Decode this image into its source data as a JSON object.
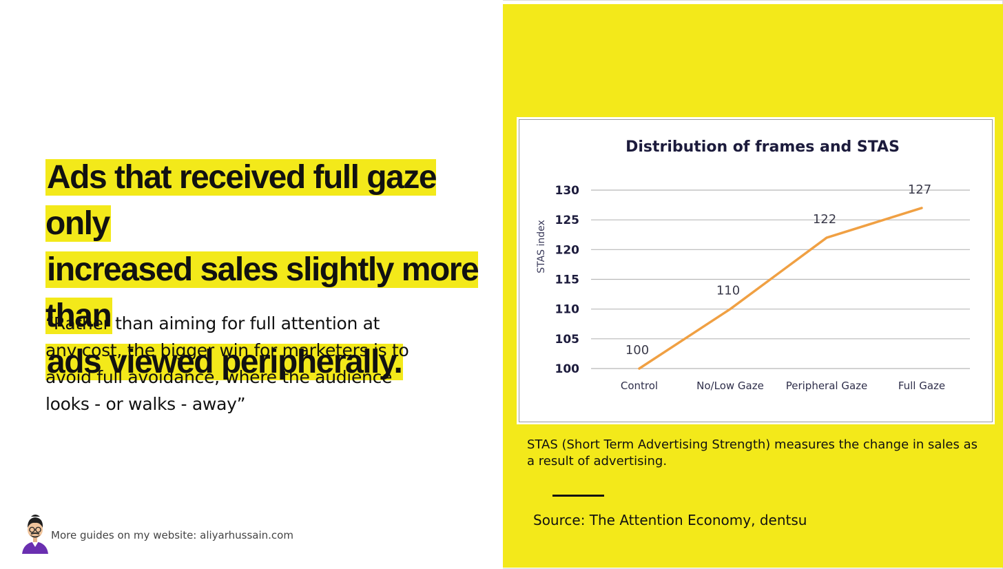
{
  "slide": {
    "headline_lines": [
      "Ads that received full gaze only",
      "increased sales slightly more than",
      "ads viewed peripherally."
    ],
    "quote_lines": [
      "“Rather than aiming for full attention at",
      "any cost, the bigger win for marketers is to",
      "avoid full avoidance, where the audience",
      "looks - or walks - away”"
    ],
    "footer_text": "More guides on my website: aliyarhussain.com",
    "note_text": "STAS (Short Term Advertising Strength) measures the change in sales as a result of advertising.",
    "source_text": "Source: The Attention Economy, dentsu"
  },
  "colors": {
    "accent_yellow": "#f3e91a",
    "line_orange": "#f0a043",
    "title_navy": "#1c1b3c"
  },
  "chart_data": {
    "type": "line",
    "title": "Distribution of frames and STAS",
    "ylabel": "STAS index",
    "xlabel": "",
    "categories": [
      "Control",
      "No/Low Gaze",
      "Peripheral Gaze",
      "Full Gaze"
    ],
    "series": [
      {
        "values": [
          100,
          110,
          122,
          127
        ]
      }
    ],
    "data_labels": [
      "100",
      "110",
      "122",
      "127"
    ],
    "ylim": [
      100,
      130
    ],
    "yticks": [
      100,
      105,
      110,
      115,
      120,
      125,
      130
    ],
    "grid": true,
    "legend": "none"
  }
}
